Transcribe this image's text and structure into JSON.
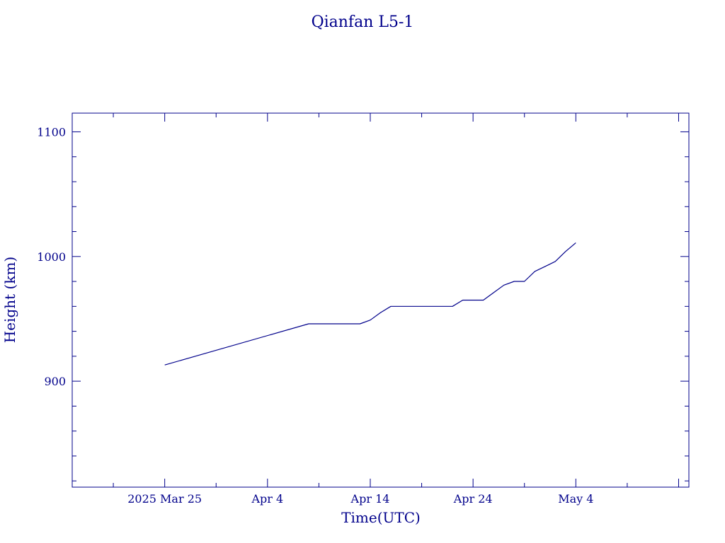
{
  "chart_data": {
    "type": "line",
    "title": "Qianfan L5-1",
    "xlabel": "Time(UTC)",
    "ylabel": "Height (km)",
    "xlim": [
      "2025-03-16",
      "2025-05-15"
    ],
    "ylim": [
      815,
      1115
    ],
    "x_tick_labels": [
      "2025 Mar 25",
      "Apr  4",
      "Apr 14",
      "Apr 24",
      "May  4"
    ],
    "x_tick_dates": [
      "2025-03-25",
      "2025-04-04",
      "2025-04-14",
      "2025-04-24",
      "2025-05-04"
    ],
    "y_tick_labels": [
      "900",
      "1000",
      "1100"
    ],
    "y_tick_values": [
      900,
      1000,
      1100
    ],
    "grid": false,
    "series": [
      {
        "color": "#00008b",
        "x": [
          "2025-03-25",
          "2025-04-08",
          "2025-04-13",
          "2025-04-14",
          "2025-04-15",
          "2025-04-16",
          "2025-04-22",
          "2025-04-23",
          "2025-04-25",
          "2025-04-26",
          "2025-04-27",
          "2025-04-28",
          "2025-04-29",
          "2025-04-30",
          "2025-05-01",
          "2025-05-02",
          "2025-05-03",
          "2025-05-04"
        ],
        "y": [
          913,
          946,
          946,
          949,
          955,
          960,
          960,
          965,
          965,
          971,
          977,
          980,
          980,
          988,
          992,
          996,
          1004,
          1011
        ]
      }
    ]
  }
}
